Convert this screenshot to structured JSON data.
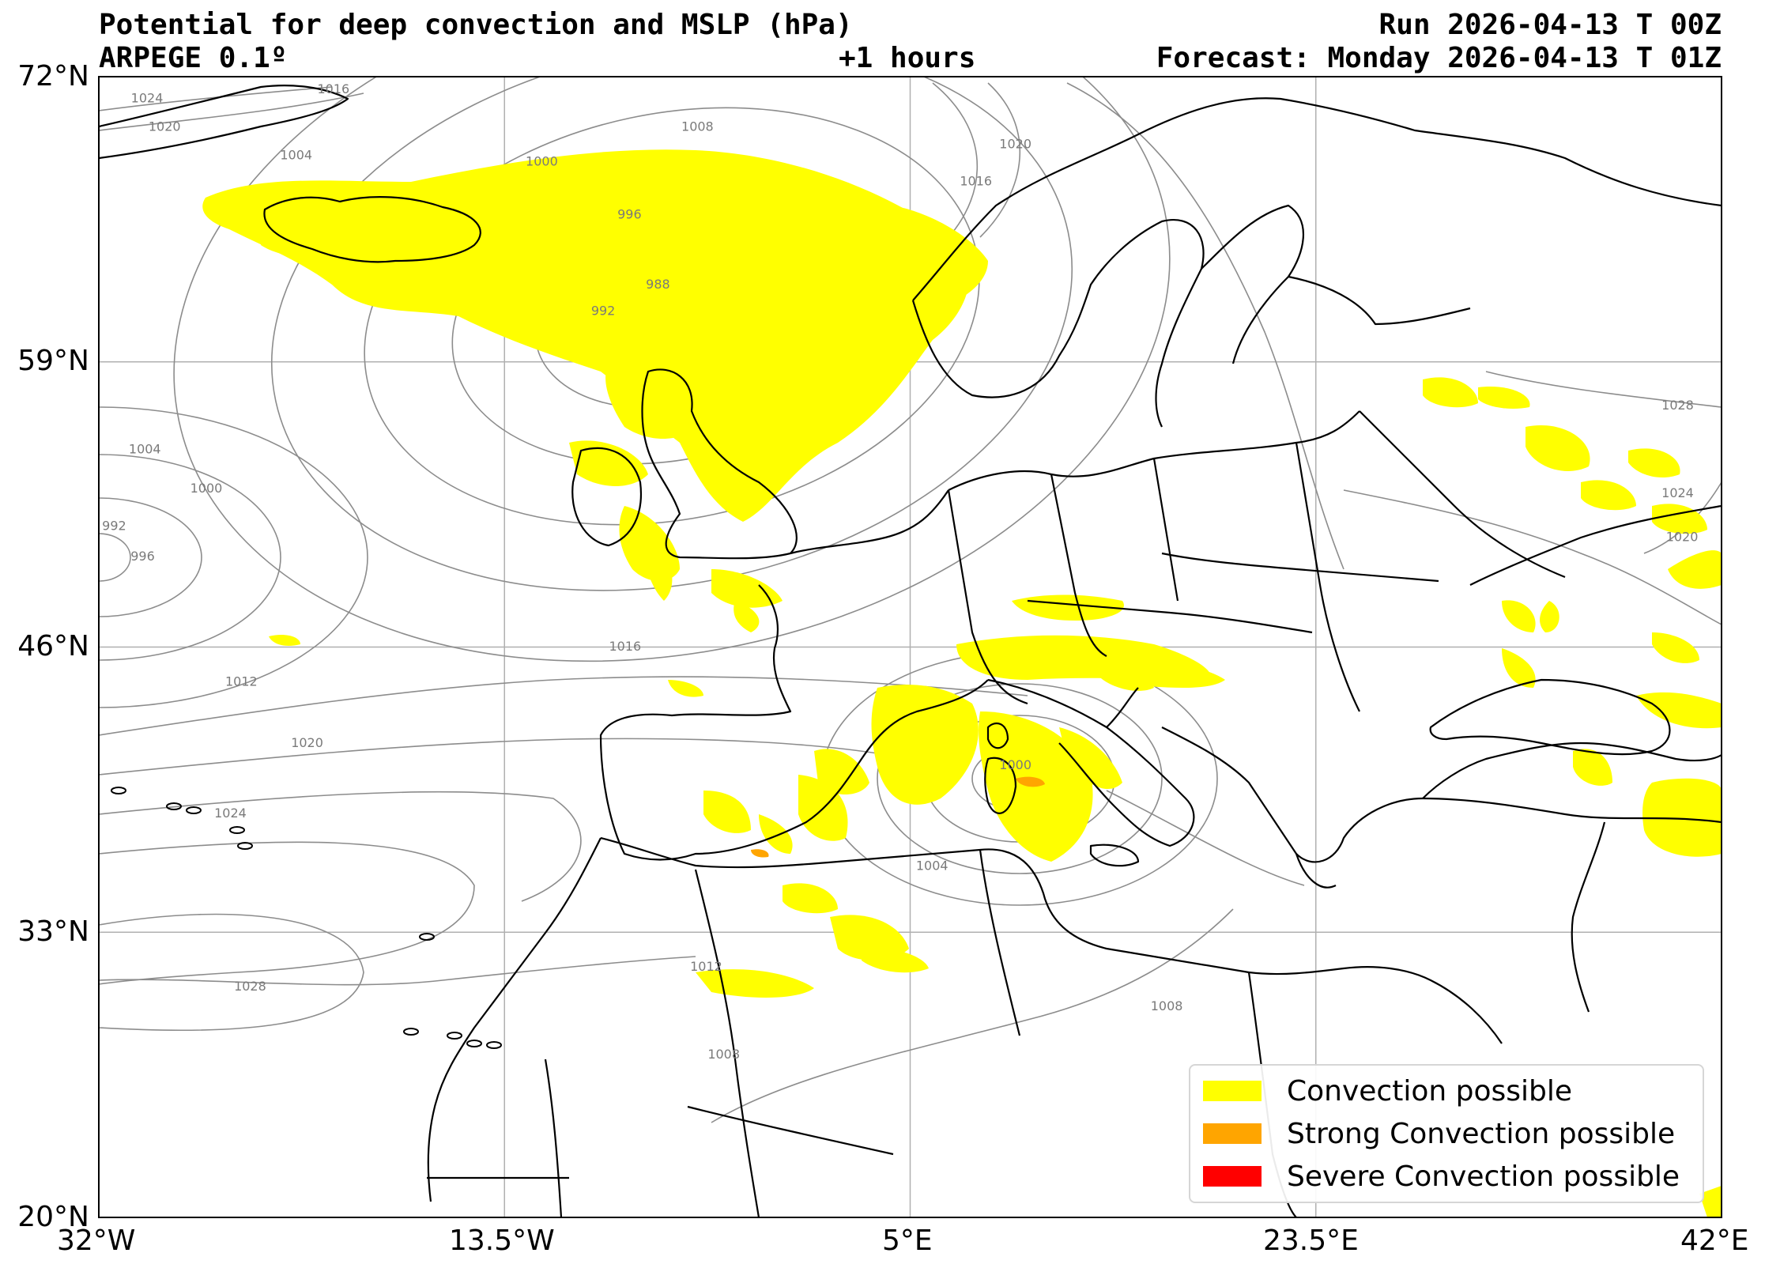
{
  "header": {
    "title": "Potential for deep convection and MSLP (hPa)",
    "model": "ARPEGE 0.1º",
    "lead_time": "+1 hours",
    "run": "Run 2026-04-13 T 00Z",
    "forecast": "Forecast: Monday 2026-04-13 T 01Z"
  },
  "map": {
    "lon_range": [
      -32,
      42
    ],
    "lat_range": [
      20,
      72
    ],
    "lon_ticks": [
      {
        "value": -32,
        "label": "32°W"
      },
      {
        "value": -13.5,
        "label": "13.5°W"
      },
      {
        "value": 5,
        "label": "5°E"
      },
      {
        "value": 23.5,
        "label": "23.5°E"
      },
      {
        "value": 42,
        "label": "42°E"
      }
    ],
    "lat_ticks": [
      {
        "value": 72,
        "label": "72°N"
      },
      {
        "value": 59,
        "label": "59°N"
      },
      {
        "value": 46,
        "label": "46°N"
      },
      {
        "value": 33,
        "label": "33°N"
      },
      {
        "value": 20,
        "label": "20°N"
      }
    ],
    "gridlines": true,
    "isobar_labels": [
      {
        "text": "1024",
        "lon": -29.8,
        "lat": 71.0
      },
      {
        "text": "1020",
        "lon": -29.0,
        "lat": 69.7
      },
      {
        "text": "1016",
        "lon": -21.3,
        "lat": 71.4
      },
      {
        "text": "1008",
        "lon": -4.7,
        "lat": 69.7
      },
      {
        "text": "1004",
        "lon": -23.0,
        "lat": 68.4
      },
      {
        "text": "1000",
        "lon": -11.8,
        "lat": 68.1
      },
      {
        "text": "1020",
        "lon": 9.8,
        "lat": 68.9
      },
      {
        "text": "1016",
        "lon": 8.0,
        "lat": 67.2
      },
      {
        "text": "996",
        "lon": -7.8,
        "lat": 65.7
      },
      {
        "text": "988",
        "lon": -6.5,
        "lat": 62.5
      },
      {
        "text": "992",
        "lon": -9.0,
        "lat": 61.3
      },
      {
        "text": "1004",
        "lon": -29.9,
        "lat": 55.0
      },
      {
        "text": "1000",
        "lon": -27.1,
        "lat": 53.2
      },
      {
        "text": "992",
        "lon": -31.3,
        "lat": 51.5
      },
      {
        "text": "996",
        "lon": -30.0,
        "lat": 50.1
      },
      {
        "text": "1016",
        "lon": -8.0,
        "lat": 46.0
      },
      {
        "text": "1012",
        "lon": -25.5,
        "lat": 44.4
      },
      {
        "text": "1020",
        "lon": -22.5,
        "lat": 41.6
      },
      {
        "text": "1024",
        "lon": -26.0,
        "lat": 38.4
      },
      {
        "text": "1000",
        "lon": 9.8,
        "lat": 40.6
      },
      {
        "text": "1004",
        "lon": 6.0,
        "lat": 36.0
      },
      {
        "text": "1028",
        "lon": -25.1,
        "lat": 30.5
      },
      {
        "text": "1012",
        "lon": -4.3,
        "lat": 31.4
      },
      {
        "text": "1008",
        "lon": 16.7,
        "lat": 29.6
      },
      {
        "text": "1008",
        "lon": -3.5,
        "lat": 27.4
      },
      {
        "text": "1028",
        "lon": 40.0,
        "lat": 57.0
      },
      {
        "text": "1020",
        "lon": 40.2,
        "lat": 51.0
      },
      {
        "text": "1024",
        "lon": 40.0,
        "lat": 53.0
      }
    ]
  },
  "legend": {
    "items": [
      {
        "label": "Convection possible",
        "color": "#ffff00"
      },
      {
        "label": "Strong Convection possible",
        "color": "#ffa500"
      },
      {
        "label": "Severe Convection possible",
        "color": "#ff0000"
      }
    ]
  }
}
